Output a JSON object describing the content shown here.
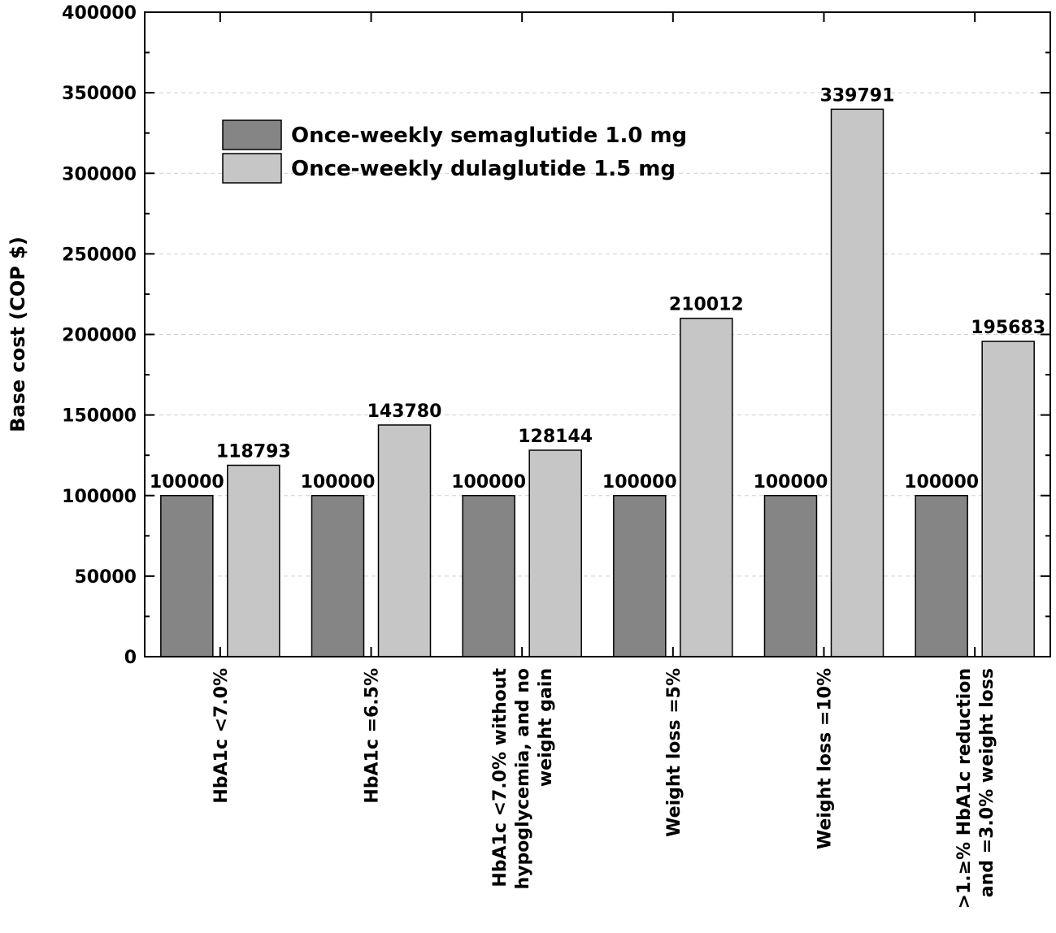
{
  "chart_data": {
    "type": "bar",
    "categories": [
      [
        "HbA1c <7.0%"
      ],
      [
        "HbA1c =6.5%"
      ],
      [
        "HbA1c <7.0% without",
        "hypoglycemia, and no",
        "weight gain"
      ],
      [
        "Weight loss =5%"
      ],
      [
        "Weight loss =10%"
      ],
      [
        ">1.≥% HbA1c reduction",
        "and =3.0% weight loss"
      ]
    ],
    "series": [
      {
        "name": "Once-weekly semaglutide 1.0 mg",
        "color": "#858585",
        "values": [
          100000,
          100000,
          100000,
          100000,
          100000,
          100000
        ]
      },
      {
        "name": "Once-weekly dulaglutide 1.5 mg",
        "color": "#c6c6c6",
        "values": [
          118793,
          143780,
          128144,
          210012,
          339791,
          195683
        ]
      }
    ],
    "data_labels": [
      [
        "100000",
        "100000",
        "100000",
        "100000",
        "100000",
        "100000"
      ],
      [
        "118793",
        "143780",
        "128144",
        "210012",
        "339791",
        "195683"
      ]
    ],
    "ylabel": "Base cost (COP $)",
    "xlabel": "",
    "ylim": [
      0,
      400000
    ],
    "yticks": [
      "0",
      "50000",
      "100000",
      "150000",
      "200000",
      "250000",
      "300000",
      "350000",
      "400000"
    ],
    "grid": true,
    "legend": "upper-left"
  }
}
